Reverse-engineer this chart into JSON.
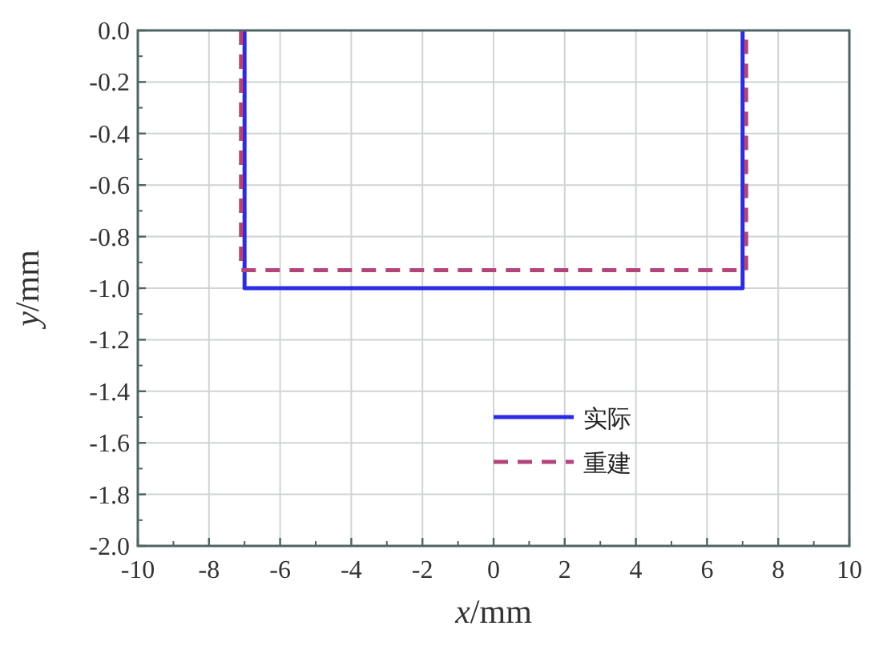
{
  "chart_data": {
    "type": "line",
    "xlabel": "*x*/mm",
    "ylabel": "*y*/mm",
    "xlim": [
      -10,
      10
    ],
    "ylim": [
      -2,
      0
    ],
    "xticks": [
      -10,
      -8,
      -6,
      -4,
      -2,
      0,
      2,
      4,
      6,
      8,
      10
    ],
    "yticks": [
      {
        "value": 0,
        "label": "0.0"
      },
      -0.2,
      -0.4,
      -0.6,
      -0.8,
      {
        "value": -1,
        "label": "-1.0"
      },
      -1.2,
      -1.4,
      -1.6,
      -1.8,
      {
        "value": -2,
        "label": "-2.0"
      }
    ],
    "grid": true,
    "legend": "bottom",
    "series": [
      {
        "name": "实际",
        "color": "#2b2be6",
        "line_style": "solid",
        "x": [
          -7,
          -7,
          7,
          7
        ],
        "values": [
          0,
          -1,
          -1,
          0
        ]
      },
      {
        "name": "重建",
        "color": "#b2467a",
        "line_style": "dashed",
        "x": [
          -7.1,
          -7.1,
          7.1,
          7.1
        ],
        "values": [
          0,
          -0.93,
          -0.93,
          0
        ]
      }
    ]
  }
}
